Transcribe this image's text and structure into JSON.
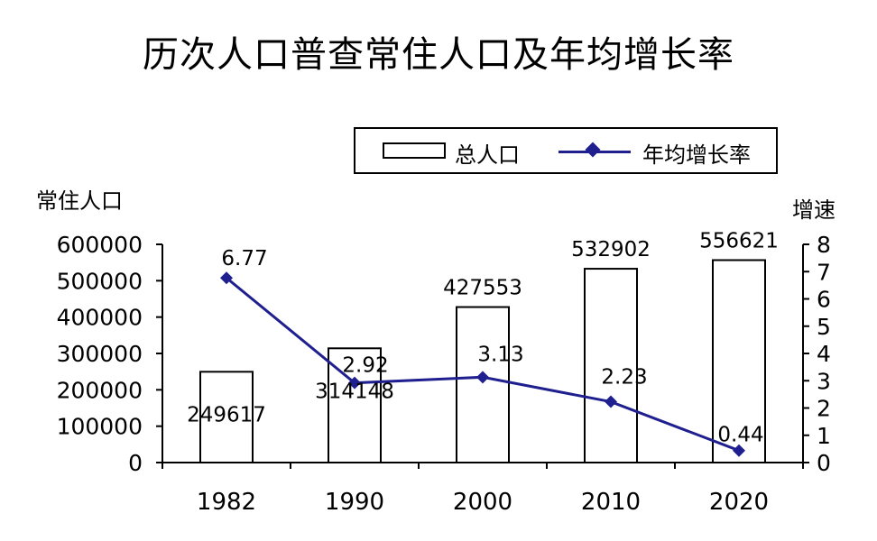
{
  "chart_data": {
    "type": "bar",
    "title": "历次人口普查常住人口及年均增长率",
    "categories": [
      "1982",
      "1990",
      "2000",
      "2010",
      "2020"
    ],
    "series": [
      {
        "name": "总人口",
        "type": "bar",
        "axis": "left",
        "values": [
          249617,
          314148,
          427553,
          532902,
          556621
        ]
      },
      {
        "name": "年均增长率",
        "type": "line",
        "axis": "right",
        "values": [
          6.77,
          2.92,
          3.13,
          2.23,
          0.44
        ]
      }
    ],
    "ylabel": "常住人口",
    "y2label": "增速",
    "ylim": [
      0,
      600000
    ],
    "y2lim": [
      0,
      8
    ],
    "yticks": [
      0,
      100000,
      200000,
      300000,
      400000,
      500000,
      600000
    ],
    "y2ticks": [
      0,
      1,
      2,
      3,
      4,
      5,
      6,
      7,
      8
    ],
    "legend": "top",
    "grid": false,
    "colors": {
      "bar_fill": "#ffffff",
      "bar_stroke": "#000000",
      "line": "#1f1f8f"
    }
  }
}
